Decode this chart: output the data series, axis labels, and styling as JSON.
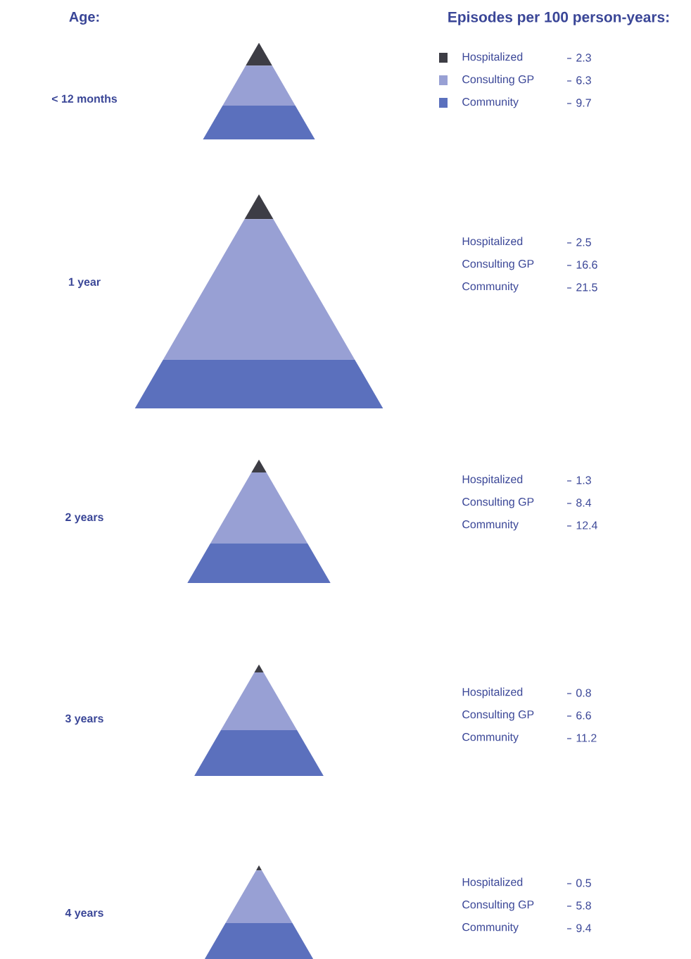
{
  "chart_data": {
    "type": "other",
    "title": "Episodes per 100 person-years:",
    "ylabel": "Age:",
    "legend": "top right",
    "data_labels": true,
    "categories": [
      "< 12 months",
      "1 year",
      "2 years",
      "3 years",
      "4 years"
    ],
    "series": [
      {
        "name": "Hospitalized",
        "color": "#3d3d45",
        "values": [
          2.3,
          2.5,
          1.3,
          0.8,
          0.5
        ]
      },
      {
        "name": "Consulting GP",
        "color": "#98a0d4",
        "values": [
          6.3,
          16.6,
          8.4,
          6.6,
          5.8
        ]
      },
      {
        "name": "Community",
        "color": "#5b70bd",
        "values": [
          9.7,
          21.5,
          12.4,
          11.2,
          9.4
        ]
      }
    ]
  }
}
